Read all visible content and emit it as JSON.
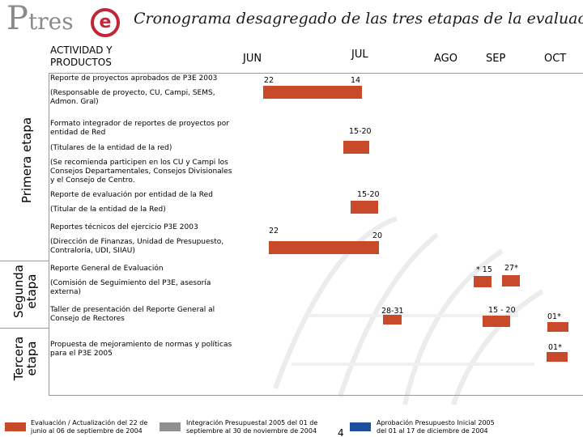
{
  "header": {
    "logo_text_p": "P",
    "logo_text_tres": "tres",
    "logo_text_e": "e",
    "title": "Cronograma desagregado de las tres etapas de la evaluación",
    "activity_col": "ACTIVIDAD Y PRODUCTOS"
  },
  "colors": {
    "bar_red": "#c94a2a",
    "bar_gray": "#8f8f8f",
    "bar_blue": "#1f4e9c",
    "logo_red": "#c0283a",
    "logo_gray": "#8a8a8a"
  },
  "stages": [
    {
      "label": "Primera etapa"
    },
    {
      "label": "Segunda etapa"
    },
    {
      "label": "Tercera etapa"
    }
  ],
  "chart_data": {
    "type": "gantt",
    "months": [
      "JUN",
      "JUL",
      "AGO",
      "SEP",
      "OCT"
    ],
    "activities": [
      {
        "name": "Reporte de proyectos aprobados de P3E 2003",
        "note": "(Responsable de proyecto, CU, Campi, SEMS, Admon. Gral)",
        "stage": "Primera etapa",
        "labels": [
          "22",
          "14"
        ],
        "start": "JUN-22",
        "end": "JUL-14"
      },
      {
        "name": "Formato integrador de reportes de proyectos por entidad de Red",
        "note": "(Titulares de la entidad de la red)",
        "note2": "(Se recomienda participen en los CU y Campi los Consejos Departamentales, Consejos Divisionales y el Consejo de Centro.",
        "stage": "Primera etapa",
        "labels": [
          "15-20"
        ],
        "start": "JUL-15",
        "end": "JUL-20"
      },
      {
        "name": "Reporte de evaluación por entidad de la Red",
        "note": "(Titular de la entidad de la Red)",
        "stage": "Primera etapa",
        "labels": [
          "15-20"
        ],
        "start": "JUL-15",
        "end": "JUL-20"
      },
      {
        "name": "Reportes técnicos del ejercicio P3E 2003",
        "note": "(Dirección de Finanzas, Unidad de Presupuesto, Contraloría, UDI, SIIAU)",
        "stage": "Primera etapa",
        "labels": [
          "22",
          "20"
        ],
        "start": "JUN-22",
        "end": "JUL-20"
      },
      {
        "name": "Reporte General de Evaluación",
        "note": "(Comisión de Seguimiento del P3E, asesoría externa)",
        "stage": "Segunda etapa",
        "labels": [
          "* 15",
          "27*"
        ],
        "start": "SEP-15",
        "end": "SEP-27"
      },
      {
        "name": "Taller de presentación del Reporte General al Consejo de Rectores",
        "note": "",
        "stage": "Segunda etapa",
        "labels": [
          "28-31",
          "15  -  20",
          "01*"
        ],
        "start": "AGO-28",
        "end": "OCT-01"
      },
      {
        "name": "Propuesta de mejoramiento de normas y políticas para el P3E 2005",
        "note": "",
        "stage": "Tercera etapa",
        "labels": [
          "01*"
        ],
        "start": "OCT-01",
        "end": "OCT-01"
      }
    ],
    "legend": [
      {
        "text": "Evaluación / Actualización del 22 de junio al 06 de septiembre de 2004",
        "color": "#c94a2a"
      },
      {
        "text": "Integración Presupuestal 2005 del 01 de septiembre al 30 de noviembre de 2004",
        "color": "#8f8f8f"
      },
      {
        "text": "Aprobación Presupuesto Inicial 2005 del 01 al 17 de diciembre de 2004",
        "color": "#1f4e9c"
      }
    ]
  },
  "page_number": "4"
}
